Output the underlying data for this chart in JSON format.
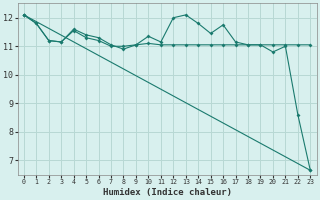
{
  "xlabel": "Humidex (Indice chaleur)",
  "background_color": "#d8f0ee",
  "grid_color": "#b8d8d4",
  "line_color": "#1a7a6e",
  "xlim": [
    -0.5,
    23.5
  ],
  "ylim": [
    6.5,
    12.5
  ],
  "xticks": [
    0,
    1,
    2,
    3,
    4,
    5,
    6,
    7,
    8,
    9,
    10,
    11,
    12,
    13,
    14,
    15,
    16,
    17,
    18,
    19,
    20,
    21,
    22,
    23
  ],
  "yticks": [
    7,
    8,
    9,
    10,
    11,
    12
  ],
  "line1_x": [
    0,
    1,
    2,
    3,
    4,
    5,
    6,
    7,
    8,
    9,
    10,
    11,
    12,
    13,
    14,
    15,
    16,
    17,
    18,
    19,
    20,
    21,
    22,
    23
  ],
  "line1_y": [
    12.1,
    11.8,
    11.2,
    11.15,
    11.6,
    11.4,
    11.3,
    11.05,
    10.9,
    11.05,
    11.35,
    11.15,
    12.0,
    12.1,
    11.8,
    11.45,
    11.75,
    11.15,
    11.05,
    11.05,
    10.8,
    11.0,
    8.6,
    6.65
  ],
  "line2_x": [
    0,
    1,
    2,
    3,
    4,
    5,
    6,
    7,
    8,
    9,
    10,
    11,
    12,
    13,
    14,
    15,
    16,
    17,
    18,
    19,
    20,
    21,
    22,
    23
  ],
  "line2_y": [
    12.1,
    11.8,
    11.2,
    11.15,
    11.55,
    11.3,
    11.2,
    11.0,
    11.0,
    11.05,
    11.1,
    11.05,
    11.05,
    11.05,
    11.05,
    11.05,
    11.05,
    11.05,
    11.05,
    11.05,
    11.05,
    11.05,
    11.05,
    11.05
  ],
  "line3_x": [
    0,
    23
  ],
  "line3_y": [
    12.1,
    6.65
  ]
}
